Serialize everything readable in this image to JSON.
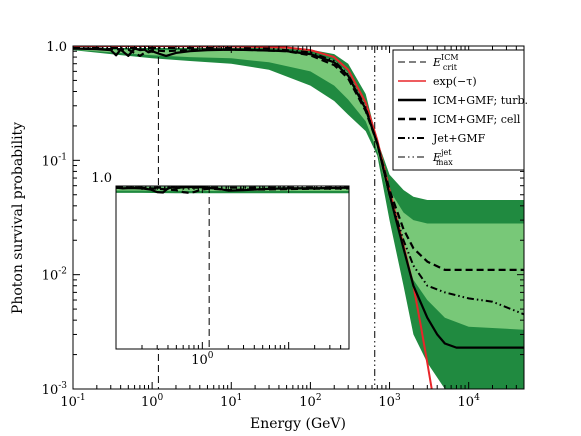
{
  "chart_data": {
    "type": "line",
    "title": "",
    "xlabel": "Energy (GeV)",
    "ylabel": "Photon survival probability",
    "x_scale": "log",
    "y_scale": "log",
    "xlim": [
      0.1,
      50000
    ],
    "ylim": [
      0.001,
      1.0
    ],
    "x_ticks": [
      {
        "value": 0.1,
        "base": "10",
        "exp": "-1"
      },
      {
        "value": 1,
        "base": "10",
        "exp": "0"
      },
      {
        "value": 10,
        "base": "10",
        "exp": "1"
      },
      {
        "value": 100,
        "base": "10",
        "exp": "2"
      },
      {
        "value": 1000,
        "base": "10",
        "exp": "3"
      },
      {
        "value": 10000,
        "base": "10",
        "exp": "4"
      }
    ],
    "y_ticks": [
      {
        "value": 0.001,
        "base": "10",
        "exp": "-3"
      },
      {
        "value": 0.01,
        "base": "10",
        "exp": "-2"
      },
      {
        "value": 0.1,
        "base": "10",
        "exp": "-1"
      },
      {
        "value": 1,
        "text": "1.0"
      }
    ],
    "grid": false,
    "legend_position": "top-right",
    "colors": {
      "dark_band": "#208a40",
      "light_band": "#78c878",
      "absorption": "#e8262a",
      "lines": "#000000"
    },
    "bands": [
      {
        "level": "outer",
        "color": "#208a40",
        "x": [
          0.1,
          0.3,
          1,
          3,
          10,
          30,
          100,
          200,
          300,
          500,
          700,
          1000,
          1500,
          2000,
          3000,
          5000,
          10000,
          50000
        ],
        "upper": [
          0.97,
          0.96,
          0.96,
          0.96,
          0.96,
          0.96,
          0.93,
          0.85,
          0.7,
          0.38,
          0.15,
          0.075,
          0.055,
          0.048,
          0.045,
          0.045,
          0.045,
          0.045
        ],
        "lower": [
          0.92,
          0.85,
          0.78,
          0.74,
          0.7,
          0.62,
          0.45,
          0.33,
          0.25,
          0.18,
          0.11,
          0.03,
          0.008,
          0.003,
          0.0017,
          0.001,
          0.001,
          0.001
        ]
      },
      {
        "level": "inner",
        "color": "#78c878",
        "x": [
          0.1,
          0.3,
          1,
          3,
          10,
          30,
          100,
          200,
          300,
          500,
          700,
          1000,
          1500,
          2000,
          3000,
          5000,
          10000,
          50000
        ],
        "upper": [
          0.96,
          0.93,
          0.92,
          0.92,
          0.92,
          0.91,
          0.86,
          0.75,
          0.58,
          0.3,
          0.13,
          0.055,
          0.035,
          0.03,
          0.028,
          0.028,
          0.028,
          0.028
        ],
        "lower": [
          0.93,
          0.88,
          0.83,
          0.8,
          0.78,
          0.72,
          0.6,
          0.45,
          0.34,
          0.22,
          0.12,
          0.045,
          0.017,
          0.009,
          0.006,
          0.0042,
          0.0035,
          0.0033
        ]
      }
    ],
    "series": [
      {
        "name": "exp(−τ)",
        "color": "#e8262a",
        "dash": "solid",
        "x": [
          0.1,
          1,
          10,
          50,
          100,
          200,
          300,
          500,
          700,
          1000,
          1500,
          2000,
          2500,
          3000,
          3500
        ],
        "y": [
          1.0,
          0.999,
          0.99,
          0.97,
          0.92,
          0.8,
          0.62,
          0.32,
          0.15,
          0.055,
          0.018,
          0.008,
          0.0035,
          0.0017,
          0.0009
        ]
      },
      {
        "name": "ICM+GMF; turb.",
        "color": "#000000",
        "dash": "solid",
        "x": [
          0.1,
          0.2,
          0.3,
          0.35,
          0.4,
          0.5,
          0.6,
          0.7,
          0.8,
          0.9,
          1.0,
          1.2,
          1.5,
          2.0,
          3.0,
          5.0,
          10,
          20,
          50,
          100,
          200,
          300,
          500,
          700,
          1000,
          1500,
          2000,
          3000,
          4000,
          5000,
          7000,
          10000,
          20000,
          50000
        ],
        "y": [
          0.95,
          0.94,
          0.92,
          0.83,
          0.93,
          0.82,
          0.95,
          0.92,
          0.93,
          0.88,
          0.9,
          0.86,
          0.82,
          0.87,
          0.9,
          0.92,
          0.93,
          0.92,
          0.9,
          0.85,
          0.72,
          0.55,
          0.28,
          0.14,
          0.05,
          0.017,
          0.008,
          0.0042,
          0.003,
          0.0025,
          0.0023,
          0.0023,
          0.0023,
          0.0023
        ]
      },
      {
        "name": "ICM+GMF; cell",
        "color": "#000000",
        "dash": "dashed",
        "x": [
          0.1,
          0.2,
          0.3,
          0.5,
          0.7,
          0.8,
          1.0,
          1.2,
          1.5,
          2.0,
          3.0,
          5.0,
          10,
          20,
          50,
          100,
          200,
          300,
          500,
          700,
          1000,
          1500,
          2000,
          3000,
          5000,
          10000,
          50000
        ],
        "y": [
          0.95,
          0.95,
          0.94,
          0.93,
          0.82,
          0.87,
          0.92,
          0.91,
          0.9,
          0.91,
          0.92,
          0.93,
          0.93,
          0.92,
          0.9,
          0.83,
          0.68,
          0.52,
          0.27,
          0.14,
          0.055,
          0.025,
          0.017,
          0.013,
          0.011,
          0.011,
          0.011
        ]
      },
      {
        "name": "Jet+GMF",
        "color": "#000000",
        "dash": "dash-dot-dot",
        "x": [
          0.1,
          1,
          10,
          30,
          100,
          200,
          300,
          500,
          700,
          1000,
          1500,
          2000,
          3000,
          5000,
          10000,
          20000,
          50000
        ],
        "y": [
          0.96,
          0.96,
          0.96,
          0.95,
          0.88,
          0.74,
          0.56,
          0.29,
          0.14,
          0.05,
          0.02,
          0.012,
          0.008,
          0.007,
          0.0062,
          0.0058,
          0.0045
        ]
      }
    ],
    "reference_lines": [
      {
        "name": "E_crit^ICM",
        "x": 1.2,
        "dash": "dashed"
      },
      {
        "name": "E_max^jet",
        "x": 650,
        "dash": "dash-dot-dot"
      }
    ],
    "legend": [
      {
        "key": "ecrit",
        "base": "E",
        "sub": "crit",
        "sup": "ICM",
        "dash": "dashed",
        "color": "#000000",
        "width": 1
      },
      {
        "key": "exp",
        "text": "exp(−τ)",
        "dash": "solid",
        "color": "#e8262a",
        "width": 1.5
      },
      {
        "key": "turb",
        "text": "ICM+GMF; turb.",
        "dash": "solid",
        "color": "#000000",
        "width": 2.4
      },
      {
        "key": "cell",
        "text": "ICM+GMF; cell",
        "dash": "dashed",
        "color": "#000000",
        "width": 2.4
      },
      {
        "key": "jet",
        "text": "Jet+GMF",
        "dash": "dash-dot-dot",
        "color": "#000000",
        "width": 2
      },
      {
        "key": "emax",
        "base": "E",
        "sub": "max",
        "sup": "jet",
        "dash": "dash-dot-dot",
        "color": "#000000",
        "width": 1
      }
    ],
    "inset": {
      "xlim": [
        0.1,
        50
      ],
      "ylim": [
        0.007,
        1.0
      ],
      "x_ticks": [
        {
          "value": 1,
          "base": "10",
          "exp": "0"
        }
      ],
      "y_ticks": [
        {
          "value": 1,
          "text": "1.0"
        }
      ],
      "bands": [
        {
          "color": "#208a40",
          "x": [
            0.1,
            0.2,
            0.5,
            1,
            2,
            5,
            10,
            20,
            50
          ],
          "upper": [
            0.98,
            0.98,
            0.98,
            0.98,
            0.98,
            0.98,
            0.97,
            0.97,
            0.97
          ],
          "lower": [
            0.81,
            0.81,
            0.8,
            0.8,
            0.8,
            0.8,
            0.8,
            0.8,
            0.8
          ]
        },
        {
          "color": "#78c878",
          "x": [
            0.1,
            0.2,
            0.5,
            1,
            2,
            5,
            10,
            20,
            50
          ],
          "upper": [
            0.97,
            0.96,
            0.96,
            0.96,
            0.96,
            0.96,
            0.96,
            0.96,
            0.95
          ],
          "lower": [
            0.87,
            0.87,
            0.86,
            0.86,
            0.86,
            0.86,
            0.86,
            0.86,
            0.86
          ]
        }
      ],
      "series": [
        {
          "name": "ICM+GMF; turb.",
          "color": "#000000",
          "dash": "solid",
          "x": [
            0.1,
            0.12,
            0.15,
            0.2,
            0.25,
            0.3,
            0.35,
            0.4,
            0.45,
            0.5,
            0.6,
            0.7,
            0.8,
            1.0,
            1.2,
            1.5,
            2.0,
            3.0,
            5.0,
            7.0,
            10,
            15,
            20,
            30,
            50
          ],
          "y": [
            0.95,
            0.93,
            0.94,
            0.93,
            0.9,
            0.83,
            0.82,
            0.93,
            0.96,
            0.94,
            0.96,
            0.97,
            0.97,
            0.96,
            0.94,
            0.92,
            0.87,
            0.88,
            0.91,
            0.92,
            0.93,
            0.93,
            0.93,
            0.94,
            0.95
          ]
        },
        {
          "name": "ICM+GMF; cell",
          "color": "#000000",
          "dash": "dashed",
          "x": [
            0.1,
            0.15,
            0.2,
            0.3,
            0.4,
            0.5,
            0.6,
            0.7,
            0.8,
            0.9,
            1.0,
            1.2,
            1.5,
            2.0,
            3.0,
            5.0,
            10,
            20,
            50
          ],
          "y": [
            0.95,
            0.95,
            0.94,
            0.92,
            0.9,
            0.88,
            0.83,
            0.81,
            0.83,
            0.87,
            0.9,
            0.92,
            0.91,
            0.88,
            0.9,
            0.9,
            0.91,
            0.92,
            0.93
          ]
        },
        {
          "name": "Jet+GMF",
          "color": "#000000",
          "dash": "dash-dot-dot",
          "x": [
            0.1,
            1,
            10,
            50
          ],
          "y": [
            0.95,
            0.95,
            0.95,
            0.95
          ]
        }
      ],
      "reference_line_x": 1.2
    }
  }
}
